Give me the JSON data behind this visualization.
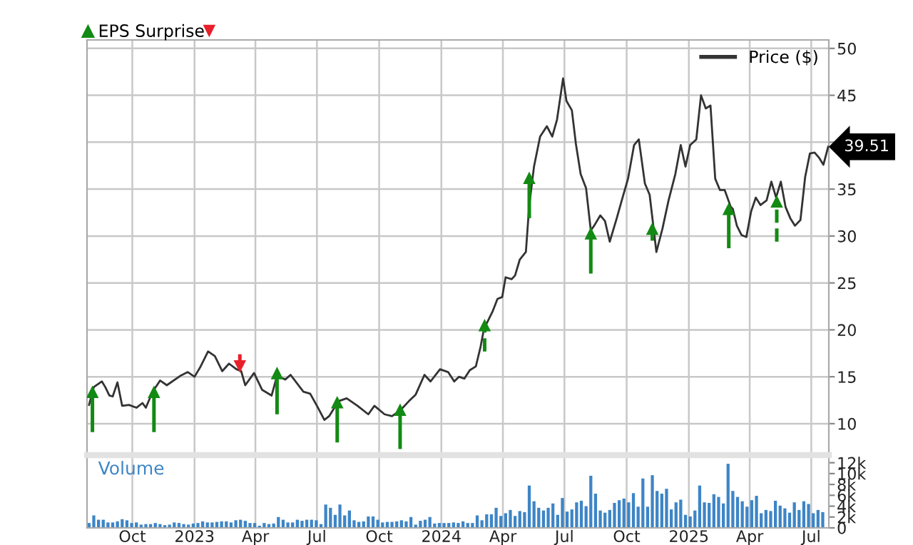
{
  "chart_data": [
    {
      "type": "line",
      "tick_labels": "y",
      "grid": true,
      "legend": "top right",
      "xlim": [
        "2022-07-26",
        "2025-07-27"
      ],
      "xticks": [
        {
          "value": "2022-10-01",
          "label": null
        },
        {
          "value": "2023-01-01",
          "label": null
        },
        {
          "value": "2023-04-01",
          "label": null
        },
        {
          "value": "2023-07-01",
          "label": null
        },
        {
          "value": "2023-10-01",
          "label": null
        },
        {
          "value": "2024-01-01",
          "label": null
        },
        {
          "value": "2024-04-01",
          "label": null
        },
        {
          "value": "2024-07-01",
          "label": null
        },
        {
          "value": "2024-10-01",
          "label": null
        },
        {
          "value": "2025-01-01",
          "label": null
        },
        {
          "value": "2025-04-01",
          "label": null
        },
        {
          "value": "2025-07-01",
          "label": null
        }
      ],
      "ylim": [
        6.8,
        50.9
      ],
      "yticks": [
        10,
        15,
        20,
        25,
        30,
        35,
        {
          "value": 40,
          "label": null
        },
        45,
        50
      ],
      "annotations": [
        {
          "text": "39.51",
          "x": "2025-07-26",
          "y": 39.51
        }
      ],
      "series": [
        {
          "name": "Price ($)",
          "color": "#333333",
          "x": [
            "2022-07-29",
            "2022-08-05",
            "2022-08-17",
            "2022-08-22",
            "2022-08-28",
            "2022-09-02",
            "2022-09-09",
            "2022-09-16",
            "2022-09-26",
            "2022-10-07",
            "2022-10-16",
            "2022-10-21",
            "2022-10-31",
            "2022-11-11",
            "2022-11-21",
            "2022-12-11",
            "2022-12-22",
            "2023-01-01",
            "2023-01-10",
            "2023-01-21",
            "2023-01-31",
            "2023-02-11",
            "2023-02-21",
            "2023-03-04",
            "2023-03-11",
            "2023-03-17",
            "2023-03-30",
            "2023-04-11",
            "2023-04-25",
            "2023-05-03",
            "2023-05-15",
            "2023-05-23",
            "2023-06-11",
            "2023-06-21",
            "2023-07-01",
            "2023-07-12",
            "2023-07-19",
            "2023-08-02",
            "2023-08-14",
            "2023-08-30",
            "2023-09-15",
            "2023-09-24",
            "2023-10-09",
            "2023-10-20",
            "2023-11-01",
            "2023-11-14",
            "2023-11-24",
            "2023-12-07",
            "2023-12-16",
            "2023-12-30",
            "2024-01-11",
            "2024-01-20",
            "2024-01-27",
            "2024-02-04",
            "2024-02-12",
            "2024-02-21",
            "2024-02-28",
            "2024-03-04",
            "2024-03-17",
            "2024-03-24",
            "2024-03-31",
            "2024-04-05",
            "2024-04-14",
            "2024-04-19",
            "2024-04-26",
            "2024-05-05",
            "2024-05-10",
            "2024-05-17",
            "2024-05-26",
            "2024-06-05",
            "2024-06-13",
            "2024-06-20",
            "2024-06-29",
            "2024-07-04",
            "2024-07-12",
            "2024-07-18",
            "2024-07-25",
            "2024-08-02",
            "2024-08-09",
            "2024-08-14",
            "2024-08-23",
            "2024-08-30",
            "2024-09-06",
            "2024-09-16",
            "2024-09-25",
            "2024-10-03",
            "2024-10-12",
            "2024-10-19",
            "2024-10-28",
            "2024-11-04",
            "2024-11-14",
            "2024-11-23",
            "2024-12-02",
            "2024-12-12",
            "2024-12-20",
            "2024-12-27",
            "2025-01-03",
            "2025-01-12",
            "2025-01-19",
            "2025-01-26",
            "2025-02-02",
            "2025-02-09",
            "2025-02-16",
            "2025-02-23",
            "2025-03-04",
            "2025-03-07",
            "2025-03-13",
            "2025-03-20",
            "2025-03-27",
            "2025-04-03",
            "2025-04-10",
            "2025-04-17",
            "2025-04-26",
            "2025-05-03",
            "2025-05-10",
            "2025-05-17",
            "2025-05-24",
            "2025-05-31",
            "2025-06-07",
            "2025-06-15",
            "2025-06-22",
            "2025-06-29",
            "2025-07-06",
            "2025-07-13",
            "2025-07-19",
            "2025-07-26"
          ],
          "values": [
            12.0,
            13.9,
            14.5,
            13.9,
            13.0,
            12.9,
            14.4,
            11.9,
            12.0,
            11.7,
            12.2,
            11.7,
            13.4,
            14.6,
            14.1,
            15.1,
            15.5,
            15.0,
            16.1,
            17.7,
            17.2,
            15.6,
            16.4,
            15.8,
            15.6,
            14.1,
            15.4,
            13.6,
            13.0,
            15.1,
            14.7,
            15.2,
            13.4,
            13.2,
            11.9,
            10.4,
            10.8,
            12.4,
            12.7,
            11.9,
            11.0,
            11.9,
            11.0,
            10.8,
            11.4,
            12.4,
            13.1,
            15.2,
            14.5,
            15.8,
            15.5,
            14.5,
            15.0,
            14.8,
            15.7,
            16.1,
            18.2,
            20.1,
            22.0,
            23.3,
            23.5,
            25.6,
            25.4,
            25.8,
            27.5,
            28.3,
            33.3,
            37.4,
            40.6,
            41.7,
            40.6,
            42.4,
            46.8,
            44.4,
            43.4,
            39.8,
            36.6,
            35.1,
            30.6,
            31.1,
            32.2,
            31.6,
            29.4,
            31.8,
            34.1,
            36.1,
            39.7,
            40.3,
            35.6,
            34.4,
            28.3,
            30.8,
            33.8,
            36.6,
            39.7,
            37.4,
            39.7,
            40.3,
            45.0,
            43.6,
            43.9,
            36.1,
            34.9,
            34.9,
            33.1,
            32.9,
            31.1,
            30.1,
            29.9,
            32.6,
            34.1,
            33.3,
            33.8,
            35.8,
            34.1,
            35.8,
            33.1,
            31.9,
            31.1,
            31.7,
            36.3,
            38.8,
            38.9,
            38.3,
            37.6,
            39.51
          ]
        },
        {
          "type": "scatter",
          "name": "EPS Surprise",
          "marker": "triangle",
          "line_style": "solid",
          "color": "#138a13",
          "x": [
            "2022-08-03",
            "2022-11-02",
            "2023-05-03",
            "2023-07-31",
            "2023-11-01",
            "2024-05-10",
            "2024-08-09",
            "2024-11-08",
            "2025-03-01"
          ],
          "values": [
            13.4,
            13.4,
            15.4,
            12.3,
            11.5,
            36.2,
            30.3,
            30.8,
            32.9
          ],
          "errors": [
            [
              9.1,
              13.4
            ],
            [
              9.1,
              13.4
            ],
            [
              11.0,
              15.4
            ],
            [
              8.0,
              12.3
            ],
            [
              7.3,
              11.5
            ],
            [
              31.9,
              36.2
            ],
            [
              26.0,
              30.3
            ],
            [
              29.5,
              30.8
            ],
            [
              28.7,
              32.9
            ]
          ]
        },
        {
          "type": "scatter",
          "marker": "triangle",
          "line_style": "solid",
          "color": "#e8202a",
          "x": [
            "2023-03-09"
          ],
          "values": [
            16.1
          ],
          "errors": [
            [
              16.1,
              17.4
            ]
          ]
        },
        {
          "type": "scatter",
          "marker": "triangle",
          "line_style": "dashed",
          "color": "#138a13",
          "x": [
            "2024-03-05",
            "2025-05-11"
          ],
          "values": [
            20.5,
            33.7
          ],
          "errors": [
            [
              17.7,
              20.5
            ],
            [
              29.4,
              33.7
            ]
          ]
        }
      ]
    },
    {
      "type": "bar",
      "grid": "x",
      "xlim": [
        "2022-07-26",
        "2025-07-27"
      ],
      "xticks": [
        {
          "value": "2022-10-01",
          "label": "Oct"
        },
        {
          "value": "2023-01-01",
          "label": "2023"
        },
        {
          "value": "2023-04-01",
          "label": "Apr"
        },
        {
          "value": "2023-07-01",
          "label": "Jul"
        },
        {
          "value": "2023-10-01",
          "label": "Oct"
        },
        {
          "value": "2024-01-01",
          "label": "2024"
        },
        {
          "value": "2024-04-01",
          "label": "Apr"
        },
        {
          "value": "2024-07-01",
          "label": "Jul"
        },
        {
          "value": "2024-10-01",
          "label": "Oct"
        },
        {
          "value": "2025-01-01",
          "label": "2025"
        },
        {
          "value": "2025-04-01",
          "label": "Apr"
        },
        {
          "value": "2025-07-01",
          "label": "Jul"
        }
      ],
      "ylim": [
        0,
        13400
      ],
      "yticks": [
        0,
        {
          "value": 2000,
          "label": "2k"
        },
        {
          "value": 4000,
          "label": "4k"
        },
        {
          "value": 6000,
          "label": "6k"
        },
        {
          "value": 8000,
          "label": "8k"
        },
        {
          "value": 10000,
          "label": "10k"
        },
        {
          "value": 12000,
          "label": "12k"
        }
      ],
      "series": [
        {
          "name": "Volume",
          "color": "#3d85c6",
          "x": [
            "2022-07-29",
            "2022-08-05",
            "2022-08-12",
            "2022-08-19",
            "2022-08-26",
            "2022-09-02",
            "2022-09-09",
            "2022-09-16",
            "2022-09-23",
            "2022-09-30",
            "2022-10-07",
            "2022-10-14",
            "2022-10-21",
            "2022-10-28",
            "2022-11-04",
            "2022-11-11",
            "2022-11-18",
            "2022-11-25",
            "2022-12-02",
            "2022-12-09",
            "2022-12-16",
            "2022-12-23",
            "2022-12-30",
            "2023-01-06",
            "2023-01-13",
            "2023-01-20",
            "2023-01-27",
            "2023-02-03",
            "2023-02-10",
            "2023-02-17",
            "2023-02-24",
            "2023-03-03",
            "2023-03-10",
            "2023-03-17",
            "2023-03-24",
            "2023-03-31",
            "2023-04-07",
            "2023-04-14",
            "2023-04-21",
            "2023-04-28",
            "2023-05-05",
            "2023-05-12",
            "2023-05-19",
            "2023-05-26",
            "2023-06-02",
            "2023-06-09",
            "2023-06-16",
            "2023-06-23",
            "2023-06-30",
            "2023-07-07",
            "2023-07-14",
            "2023-07-21",
            "2023-07-28",
            "2023-08-04",
            "2023-08-11",
            "2023-08-18",
            "2023-08-25",
            "2023-09-01",
            "2023-09-08",
            "2023-09-15",
            "2023-09-22",
            "2023-09-29",
            "2023-10-06",
            "2023-10-13",
            "2023-10-20",
            "2023-10-27",
            "2023-11-03",
            "2023-11-10",
            "2023-11-17",
            "2023-11-24",
            "2023-12-01",
            "2023-12-08",
            "2023-12-15",
            "2023-12-22",
            "2023-12-29",
            "2024-01-05",
            "2024-01-12",
            "2024-01-19",
            "2024-01-26",
            "2024-02-02",
            "2024-02-09",
            "2024-02-16",
            "2024-02-23",
            "2024-03-01",
            "2024-03-08",
            "2024-03-15",
            "2024-03-22",
            "2024-03-29",
            "2024-04-05",
            "2024-04-12",
            "2024-04-19",
            "2024-04-26",
            "2024-05-03",
            "2024-05-10",
            "2024-05-17",
            "2024-05-24",
            "2024-05-31",
            "2024-06-07",
            "2024-06-14",
            "2024-06-21",
            "2024-06-28",
            "2024-07-05",
            "2024-07-12",
            "2024-07-19",
            "2024-07-26",
            "2024-08-02",
            "2024-08-09",
            "2024-08-16",
            "2024-08-23",
            "2024-08-30",
            "2024-09-06",
            "2024-09-13",
            "2024-09-20",
            "2024-09-27",
            "2024-10-04",
            "2024-10-11",
            "2024-10-18",
            "2024-10-25",
            "2024-11-01",
            "2024-11-08",
            "2024-11-15",
            "2024-11-22",
            "2024-11-29",
            "2024-12-06",
            "2024-12-13",
            "2024-12-20",
            "2024-12-27",
            "2025-01-03",
            "2025-01-10",
            "2025-01-17",
            "2025-01-24",
            "2025-01-31",
            "2025-02-07",
            "2025-02-14",
            "2025-02-21",
            "2025-02-28",
            "2025-03-07",
            "2025-03-14",
            "2025-03-21",
            "2025-03-28",
            "2025-04-04",
            "2025-04-11",
            "2025-04-18",
            "2025-04-25",
            "2025-05-02",
            "2025-05-09",
            "2025-05-16",
            "2025-05-23",
            "2025-05-30",
            "2025-06-06",
            "2025-06-13",
            "2025-06-20",
            "2025-06-27",
            "2025-07-04",
            "2025-07-11",
            "2025-07-18"
          ],
          "values": [
            900,
            2300,
            1500,
            1500,
            1000,
            1000,
            1200,
            1600,
            1400,
            900,
            1000,
            600,
            700,
            700,
            900,
            700,
            500,
            600,
            1000,
            900,
            700,
            600,
            800,
            900,
            1200,
            1000,
            1000,
            1100,
            1200,
            1200,
            1000,
            1400,
            1500,
            1300,
            900,
            900,
            400,
            900,
            700,
            800,
            2000,
            1500,
            1000,
            1000,
            1500,
            1300,
            1500,
            1500,
            1400,
            700,
            4300,
            3700,
            2400,
            4300,
            2300,
            3200,
            1400,
            1100,
            1200,
            2100,
            2100,
            1500,
            1000,
            1100,
            1100,
            1200,
            1400,
            1200,
            2000,
            600,
            1300,
            1500,
            2000,
            800,
            900,
            900,
            900,
            1000,
            900,
            1200,
            900,
            900,
            2300,
            1400,
            2500,
            2500,
            3700,
            2200,
            2700,
            3300,
            2200,
            3100,
            2900,
            7800,
            4900,
            3700,
            3200,
            3700,
            4500,
            2400,
            5500,
            3000,
            3400,
            4700,
            5000,
            4000,
            9600,
            6300,
            3200,
            2800,
            3300,
            4600,
            5100,
            5400,
            4700,
            6400,
            3900,
            9100,
            3900,
            9700,
            6800,
            6300,
            7200,
            3400,
            4700,
            5200,
            2400,
            2100,
            3200,
            7800,
            4700,
            4600,
            6200,
            5700,
            4500,
            11800,
            6800,
            5700,
            4900,
            3900,
            5100,
            5900,
            2700,
            3300,
            3100,
            5000,
            4100,
            3600,
            2800,
            4700,
            3300,
            4900,
            4400,
            2700,
            3300,
            2900
          ]
        }
      ]
    }
  ]
}
